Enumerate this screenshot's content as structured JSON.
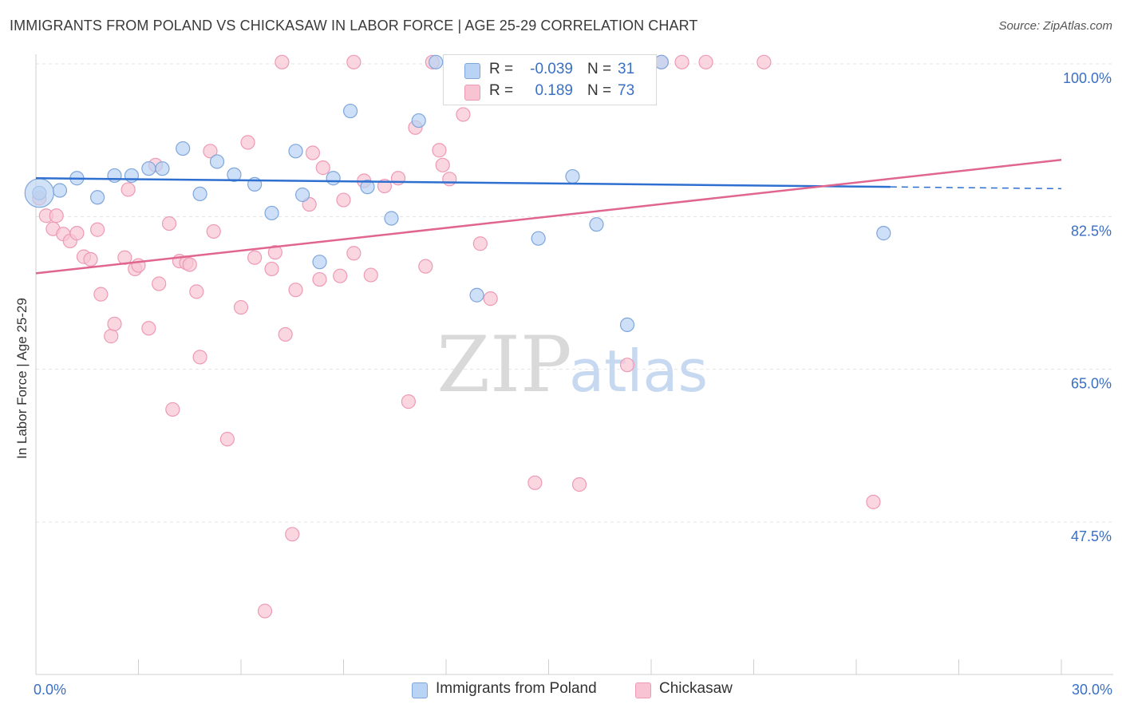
{
  "header": {
    "title": "IMMIGRANTS FROM POLAND VS CHICKASAW IN LABOR FORCE | AGE 25-29 CORRELATION CHART",
    "source": "Source: ZipAtlas.com"
  },
  "legend_top": {
    "rows": [
      {
        "r_label": "R =",
        "r_value": "-0.039",
        "n_label": "N =",
        "n_value": "31"
      },
      {
        "r_label": "R =",
        "r_value": "0.189",
        "n_label": "N =",
        "n_value": "73"
      }
    ]
  },
  "legend_bottom": {
    "items": [
      {
        "label": "Immigrants from Poland"
      },
      {
        "label": "Chickasaw"
      }
    ]
  },
  "watermark": {
    "zip": "ZIP",
    "atlas": "atlas"
  },
  "colors": {
    "poland_fill": "#b8d3f3",
    "poland_stroke": "#7fa6dc",
    "poland_line": "#2f6fcf",
    "chickasaw_fill": "#f8c4d4",
    "chickasaw_stroke": "#ee9ab5",
    "chickasaw_line": "#e0658f",
    "tick_label": "#3a6fc4",
    "grid": "#e3e3e3"
  },
  "chart_data": {
    "type": "scatter",
    "title": "IMMIGRANTS FROM POLAND VS CHICKASAW IN LABOR FORCE | AGE 25-29 CORRELATION CHART",
    "xlabel": "",
    "ylabel": "In Labor Force | Age 25-29",
    "xlim": [
      0,
      30
    ],
    "ylim": [
      32,
      102
    ],
    "x_tick_labels": [
      {
        "value": 0,
        "label": "0.0%"
      },
      {
        "value": 30,
        "label": "30.0%"
      }
    ],
    "y_tick_labels": [
      {
        "value": 100,
        "label": "100.0%"
      },
      {
        "value": 82.5,
        "label": "82.5%"
      },
      {
        "value": 65,
        "label": "65.0%"
      },
      {
        "value": 47.5,
        "label": "47.5%"
      }
    ],
    "grid": true,
    "legend_position": "top-center",
    "series": [
      {
        "name": "Immigrants from Poland",
        "R": -0.039,
        "N": 31,
        "trend": {
          "x0": 0,
          "y0": 86.9,
          "x1": 25,
          "y1": 85.9,
          "dashed_to": 30,
          "dashed_y": 85.7
        },
        "points": [
          [
            0.1,
            85.2
          ],
          [
            0.7,
            85.5
          ],
          [
            1.2,
            86.9
          ],
          [
            1.8,
            84.7
          ],
          [
            2.3,
            87.2
          ],
          [
            2.8,
            87.2
          ],
          [
            3.3,
            88.0
          ],
          [
            3.7,
            88.0
          ],
          [
            4.3,
            90.3
          ],
          [
            4.8,
            85.1
          ],
          [
            5.3,
            88.8
          ],
          [
            5.8,
            87.3
          ],
          [
            6.4,
            86.2
          ],
          [
            6.9,
            82.9
          ],
          [
            7.6,
            90.0
          ],
          [
            7.8,
            85.0
          ],
          [
            8.3,
            77.3
          ],
          [
            8.7,
            86.9
          ],
          [
            9.2,
            94.6
          ],
          [
            9.7,
            85.9
          ],
          [
            10.4,
            82.3
          ],
          [
            11.2,
            93.5
          ],
          [
            11.7,
            100.2
          ],
          [
            12.9,
            73.5
          ],
          [
            14.7,
            80.0
          ],
          [
            15.7,
            87.1
          ],
          [
            16.4,
            81.6
          ],
          [
            17.3,
            70.1
          ],
          [
            18.3,
            100.2
          ],
          [
            24.8,
            80.6
          ],
          [
            17.0,
            100.2
          ]
        ]
      },
      {
        "name": "Chickasaw",
        "R": 0.189,
        "N": 73,
        "trend": {
          "x0": 0,
          "y0": 76.0,
          "x1": 30,
          "y1": 89.0
        },
        "points": [
          [
            0.1,
            84.6
          ],
          [
            0.3,
            82.6
          ],
          [
            0.5,
            81.1
          ],
          [
            0.6,
            82.6
          ],
          [
            0.8,
            80.5
          ],
          [
            1.0,
            79.7
          ],
          [
            1.2,
            80.6
          ],
          [
            1.4,
            77.9
          ],
          [
            1.6,
            77.6
          ],
          [
            1.8,
            81.0
          ],
          [
            1.9,
            73.6
          ],
          [
            2.2,
            68.8
          ],
          [
            2.3,
            70.2
          ],
          [
            2.6,
            77.8
          ],
          [
            2.7,
            85.6
          ],
          [
            2.9,
            76.5
          ],
          [
            3.0,
            76.9
          ],
          [
            3.3,
            69.7
          ],
          [
            3.5,
            88.4
          ],
          [
            3.6,
            74.8
          ],
          [
            3.9,
            81.7
          ],
          [
            4.0,
            60.4
          ],
          [
            4.2,
            77.4
          ],
          [
            4.4,
            77.2
          ],
          [
            4.5,
            77.0
          ],
          [
            4.7,
            73.9
          ],
          [
            4.8,
            66.4
          ],
          [
            5.1,
            90.0
          ],
          [
            5.2,
            80.8
          ],
          [
            5.6,
            57.0
          ],
          [
            6.0,
            72.1
          ],
          [
            6.2,
            91.0
          ],
          [
            6.4,
            77.8
          ],
          [
            6.7,
            37.3
          ],
          [
            6.9,
            76.5
          ],
          [
            7.0,
            78.4
          ],
          [
            7.3,
            69.0
          ],
          [
            7.5,
            46.1
          ],
          [
            7.6,
            74.1
          ],
          [
            8.0,
            83.9
          ],
          [
            8.1,
            89.8
          ],
          [
            8.3,
            75.3
          ],
          [
            8.4,
            88.1
          ],
          [
            8.9,
            75.7
          ],
          [
            9.0,
            84.4
          ],
          [
            9.3,
            78.3
          ],
          [
            9.6,
            86.6
          ],
          [
            9.8,
            75.8
          ],
          [
            10.2,
            86.0
          ],
          [
            10.6,
            86.9
          ],
          [
            10.9,
            61.3
          ],
          [
            11.1,
            92.7
          ],
          [
            11.4,
            76.8
          ],
          [
            11.6,
            100.2
          ],
          [
            11.8,
            90.1
          ],
          [
            11.9,
            88.4
          ],
          [
            12.1,
            86.8
          ],
          [
            12.5,
            94.2
          ],
          [
            13.0,
            79.4
          ],
          [
            13.3,
            73.1
          ],
          [
            14.6,
            52.0
          ],
          [
            15.9,
            51.8
          ],
          [
            17.3,
            65.5
          ],
          [
            18.3,
            100.2
          ],
          [
            18.9,
            100.2
          ],
          [
            19.6,
            100.2
          ],
          [
            21.3,
            100.2
          ],
          [
            24.5,
            49.8
          ],
          [
            7.2,
            100.2
          ],
          [
            9.3,
            100.2
          ],
          [
            12.9,
            100.2
          ],
          [
            16.9,
            100.2
          ],
          [
            14.8,
            100.2
          ]
        ]
      }
    ]
  }
}
